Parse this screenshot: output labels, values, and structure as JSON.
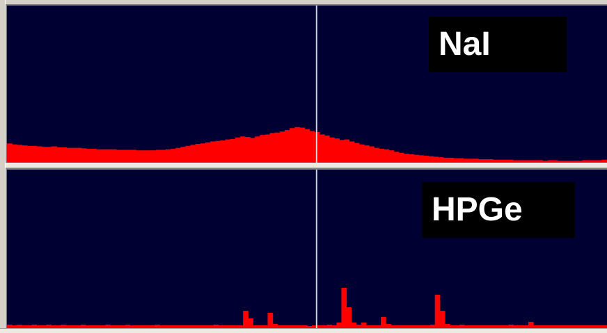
{
  "panes": {
    "top": {
      "label": "NaI"
    },
    "bottom": {
      "label": "HPGe"
    }
  },
  "colors": {
    "background": "#000033",
    "spectrum_fill": "#ff0000",
    "cursor": "#c8d8d8",
    "label_bg": "#000000",
    "label_text": "#ffffff"
  },
  "cursor": {
    "channel_fraction": 0.516
  },
  "spectra": {
    "nai": [
      39,
      37,
      36,
      35,
      34,
      34,
      33,
      32,
      32,
      33,
      31,
      31,
      30,
      30,
      30,
      29,
      28,
      28,
      27,
      27,
      27,
      27,
      26,
      26,
      26,
      26,
      25,
      25,
      25,
      25,
      26,
      26,
      27,
      28,
      30,
      32,
      34,
      36,
      38,
      39,
      41,
      43,
      44,
      45,
      47,
      48,
      51,
      53,
      52,
      50,
      53,
      56,
      57,
      60,
      61,
      63,
      66,
      70,
      72,
      71,
      68,
      64,
      62,
      57,
      55,
      51,
      49,
      46,
      47,
      43,
      40,
      37,
      35,
      33,
      30,
      28,
      27,
      25,
      22,
      20,
      18,
      17,
      16,
      15,
      14,
      13,
      12,
      11,
      10,
      10,
      9,
      9,
      8,
      8,
      8,
      7,
      7,
      7,
      6,
      6,
      6,
      6,
      5,
      5,
      5,
      5,
      5,
      5,
      4,
      5,
      5,
      4,
      4,
      4,
      4,
      4,
      5,
      5,
      5,
      5,
      6
    ],
    "hpge": [
      5,
      4,
      5,
      4,
      4,
      5,
      4,
      4,
      5,
      4,
      4,
      5,
      4,
      4,
      4,
      5,
      4,
      4,
      4,
      4,
      5,
      4,
      4,
      4,
      5,
      4,
      4,
      4,
      4,
      4,
      5,
      4,
      4,
      4,
      4,
      4,
      4,
      4,
      4,
      4,
      4,
      4,
      5,
      4,
      4,
      4,
      4,
      4,
      25,
      14,
      4,
      4,
      4,
      22,
      6,
      4,
      4,
      4,
      4,
      4,
      4,
      3,
      4,
      4,
      4,
      5,
      4,
      8,
      58,
      30,
      8,
      5,
      8,
      4,
      4,
      4,
      16,
      6,
      4,
      4,
      4,
      4,
      4,
      4,
      4,
      4,
      5,
      48,
      25,
      6,
      4,
      4,
      5,
      4,
      4,
      4,
      4,
      4,
      4,
      4,
      4,
      4,
      5,
      4,
      4,
      4,
      9,
      4,
      4,
      4,
      4,
      4,
      4,
      4,
      4,
      4,
      4,
      4,
      4,
      4,
      4,
      4
    ]
  }
}
